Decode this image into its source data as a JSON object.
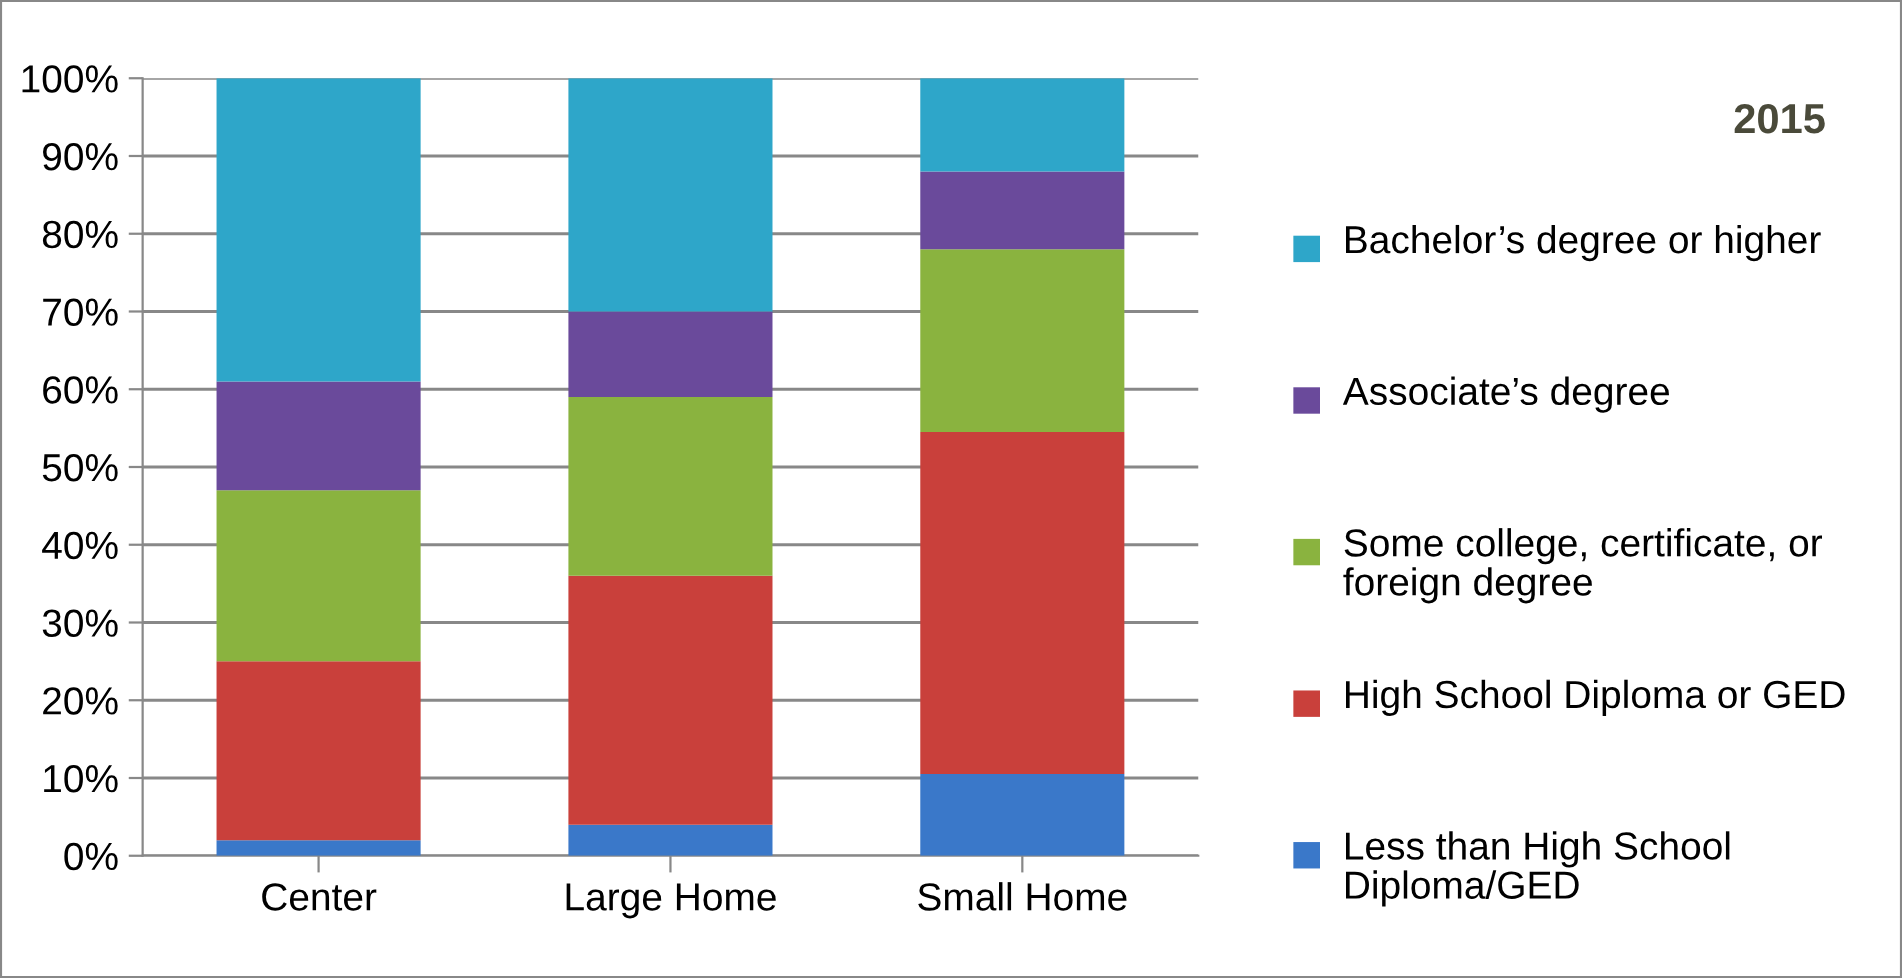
{
  "chart_data": {
    "type": "bar",
    "title": "2015",
    "stacked": true,
    "categories": [
      "Center",
      "Large Home",
      "Small Home"
    ],
    "series": [
      {
        "name": "Less than High School Diploma/GED",
        "color": "#3a78c9",
        "values": [
          2,
          4,
          10.5
        ]
      },
      {
        "name": "High School Diploma or GED",
        "color": "#c9403b",
        "values": [
          23,
          32,
          44
        ]
      },
      {
        "name": "Some college, certificate, or foreign degree",
        "color": "#8ab33f",
        "values": [
          22,
          23,
          23.5
        ]
      },
      {
        "name": "Associate’s degree",
        "color": "#6a4a9b",
        "values": [
          14,
          11,
          10
        ]
      },
      {
        "name": "Bachelor’s degree or higher",
        "color": "#2ea6c9",
        "values": [
          39,
          30,
          12
        ]
      }
    ],
    "ylim": [
      0,
      100
    ],
    "yticks": [
      {
        "value": 0,
        "label": "0%"
      },
      {
        "value": 10,
        "label": "10%"
      },
      {
        "value": 20,
        "label": "20%"
      },
      {
        "value": 30,
        "label": "30%"
      },
      {
        "value": 40,
        "label": "40%"
      },
      {
        "value": 50,
        "label": "50%"
      },
      {
        "value": 60,
        "label": "60%"
      },
      {
        "value": 70,
        "label": "70%"
      },
      {
        "value": 80,
        "label": "80%"
      },
      {
        "value": 90,
        "label": "90%"
      },
      {
        "value": 100,
        "label": "100%"
      }
    ],
    "grid": "y",
    "legend": "right"
  }
}
